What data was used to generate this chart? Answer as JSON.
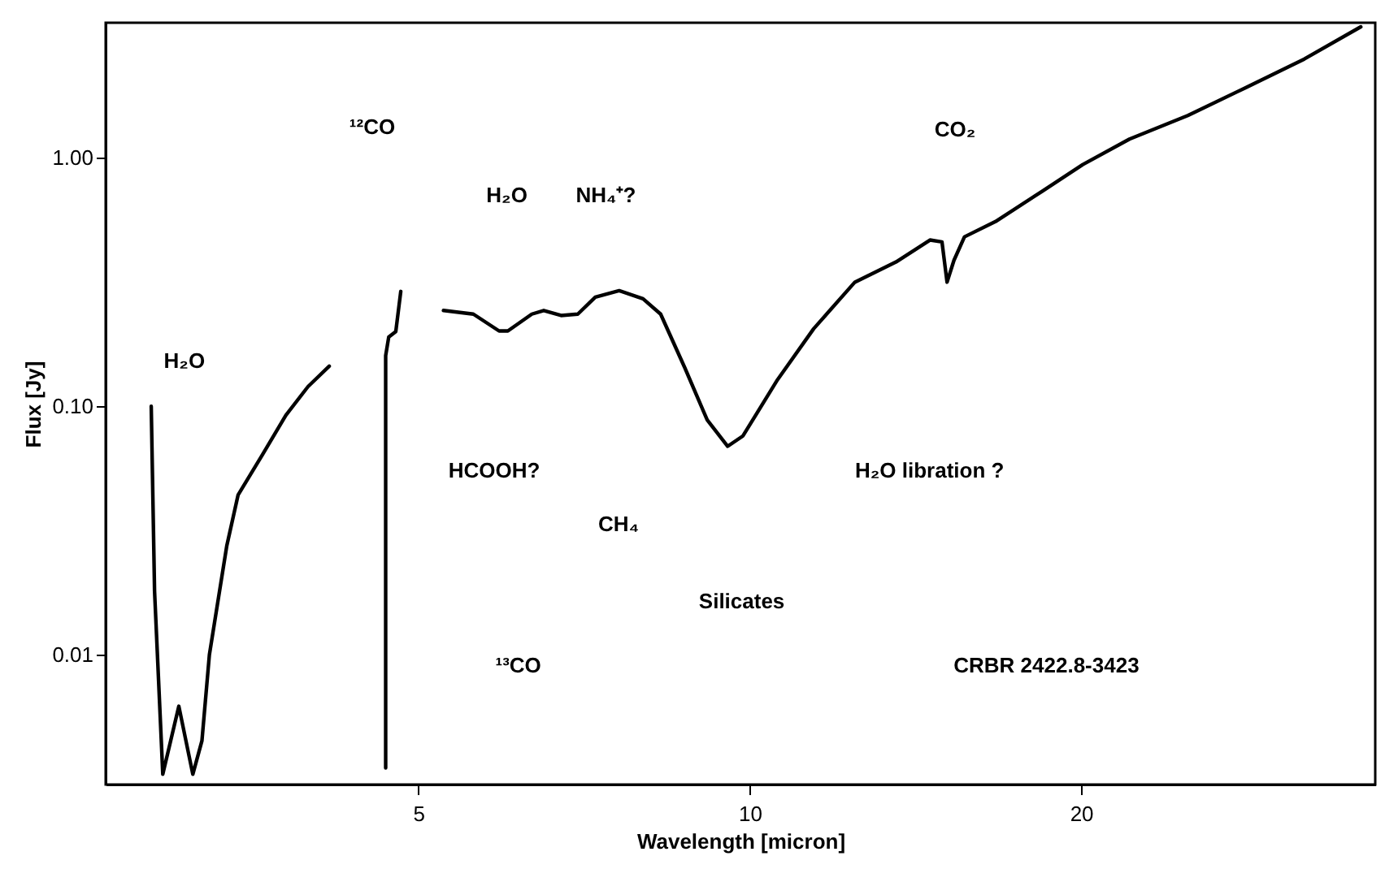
{
  "chart_data": {
    "type": "line",
    "xlabel": "Wavelength [micron]",
    "ylabel": "Flux [Jy]",
    "log": "xy",
    "xlim": [
      2.6,
      37
    ],
    "ylim": [
      0.003,
      3.5
    ],
    "xticks": [
      5,
      10,
      20
    ],
    "yticks": [
      {
        "value": 0.01,
        "label": "0.01"
      },
      {
        "value": 0.1,
        "label": "0.10"
      },
      {
        "value": 1,
        "label": "1.00"
      }
    ],
    "x": [
      2.86,
      2.88,
      2.93,
      3.03,
      3.12,
      3.18,
      3.23,
      3.35,
      3.43,
      3.61,
      3.79,
      3.97,
      4.15,
      null,
      4.67,
      4.67,
      4.7,
      4.77,
      4.82,
      null,
      5.27,
      5.61,
      5.92,
      6.03,
      6.34,
      6.5,
      6.74,
      6.98,
      7.24,
      7.61,
      8.0,
      8.3,
      8.73,
      9.15,
      9.55,
      9.86,
      10.6,
      11.43,
      12.46,
      13.58,
      14.58,
      14.95,
      15.11,
      15.33,
      15.67,
      16.72,
      18.42,
      20.07,
      22.13,
      25.0,
      28.24,
      31.9,
      35.9
    ],
    "series": [
      {
        "color": "#000000",
        "values": [
          0.1,
          0.018,
          0.0033,
          0.0062,
          0.0033,
          0.0045,
          0.01,
          0.0275,
          0.044,
          0.064,
          0.092,
          0.12,
          0.145,
          null,
          0.0035,
          0.16,
          0.19,
          0.2,
          0.29,
          null,
          0.243,
          0.235,
          0.201,
          0.201,
          0.235,
          0.243,
          0.232,
          0.235,
          0.275,
          0.292,
          0.271,
          0.235,
          0.143,
          0.088,
          0.069,
          0.076,
          0.128,
          0.205,
          0.316,
          0.381,
          0.467,
          0.459,
          0.316,
          0.387,
          0.481,
          0.554,
          0.732,
          0.94,
          1.19,
          1.48,
          1.92,
          2.5,
          3.37
        ]
      }
    ],
    "annotations": [
      "H₂O",
      "¹²CO",
      "H₂O",
      "NH₄⁺?",
      "HCOOH?",
      "CH₄",
      "Silicates",
      "H₂O libration ?",
      "CO₂",
      "¹³CO",
      "CRBR 2422.8-3423"
    ]
  }
}
